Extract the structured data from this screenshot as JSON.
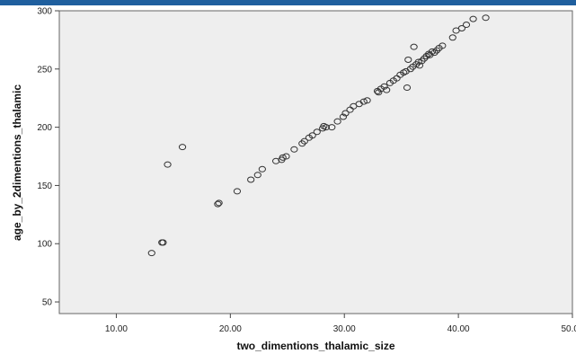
{
  "chart_data": {
    "type": "scatter",
    "xlabel": "two_dimentions_thalamic_size",
    "ylabel": "age_by_2dimentions_thalamic",
    "xlim": [
      5,
      50
    ],
    "ylim": [
      40,
      300
    ],
    "x_ticks": [
      "10.00",
      "20.00",
      "30.00",
      "40.00",
      "50.00"
    ],
    "x_tick_values": [
      10,
      20,
      30,
      40,
      50
    ],
    "y_ticks": [
      "50",
      "100",
      "150",
      "200",
      "250",
      "300"
    ],
    "y_tick_values": [
      50,
      100,
      150,
      200,
      250,
      300
    ],
    "grid": false,
    "colors": {
      "plot_background": "#eeeeee",
      "marker": "#333333",
      "top_bar": "#1f5f9e"
    },
    "series": [
      {
        "points": [
          [
            13.1,
            92
          ],
          [
            14.0,
            101
          ],
          [
            14.1,
            101
          ],
          [
            14.5,
            168
          ],
          [
            15.8,
            183
          ],
          [
            18.9,
            134
          ],
          [
            19.0,
            135
          ],
          [
            20.6,
            145
          ],
          [
            21.8,
            155
          ],
          [
            22.4,
            159
          ],
          [
            22.8,
            164
          ],
          [
            24.0,
            171
          ],
          [
            24.5,
            172
          ],
          [
            24.6,
            174
          ],
          [
            24.9,
            175
          ],
          [
            25.6,
            181
          ],
          [
            26.3,
            186
          ],
          [
            26.5,
            188
          ],
          [
            26.9,
            191
          ],
          [
            27.2,
            193
          ],
          [
            27.6,
            196
          ],
          [
            28.1,
            199
          ],
          [
            28.2,
            201
          ],
          [
            28.4,
            200
          ],
          [
            28.9,
            200
          ],
          [
            29.4,
            205
          ],
          [
            29.9,
            209
          ],
          [
            30.1,
            212
          ],
          [
            30.5,
            215
          ],
          [
            30.8,
            218
          ],
          [
            31.3,
            220
          ],
          [
            31.7,
            222
          ],
          [
            32.0,
            223
          ],
          [
            32.9,
            231
          ],
          [
            33.0,
            230
          ],
          [
            33.2,
            233
          ],
          [
            33.5,
            235
          ],
          [
            33.7,
            232
          ],
          [
            34.0,
            238
          ],
          [
            34.3,
            240
          ],
          [
            34.6,
            242
          ],
          [
            34.9,
            245
          ],
          [
            35.2,
            247
          ],
          [
            35.4,
            248
          ],
          [
            35.5,
            234
          ],
          [
            35.6,
            258
          ],
          [
            35.8,
            250
          ],
          [
            36.0,
            252
          ],
          [
            36.1,
            269
          ],
          [
            36.3,
            254
          ],
          [
            36.5,
            256
          ],
          [
            36.6,
            253
          ],
          [
            36.8,
            257
          ],
          [
            37.0,
            259
          ],
          [
            37.2,
            261
          ],
          [
            37.4,
            263
          ],
          [
            37.5,
            262
          ],
          [
            37.7,
            265
          ],
          [
            37.9,
            264
          ],
          [
            38.1,
            266
          ],
          [
            38.3,
            268
          ],
          [
            38.6,
            270
          ],
          [
            39.5,
            277
          ],
          [
            39.8,
            283
          ],
          [
            40.3,
            285
          ],
          [
            40.7,
            288
          ],
          [
            41.3,
            293
          ],
          [
            42.4,
            294
          ]
        ]
      }
    ]
  }
}
